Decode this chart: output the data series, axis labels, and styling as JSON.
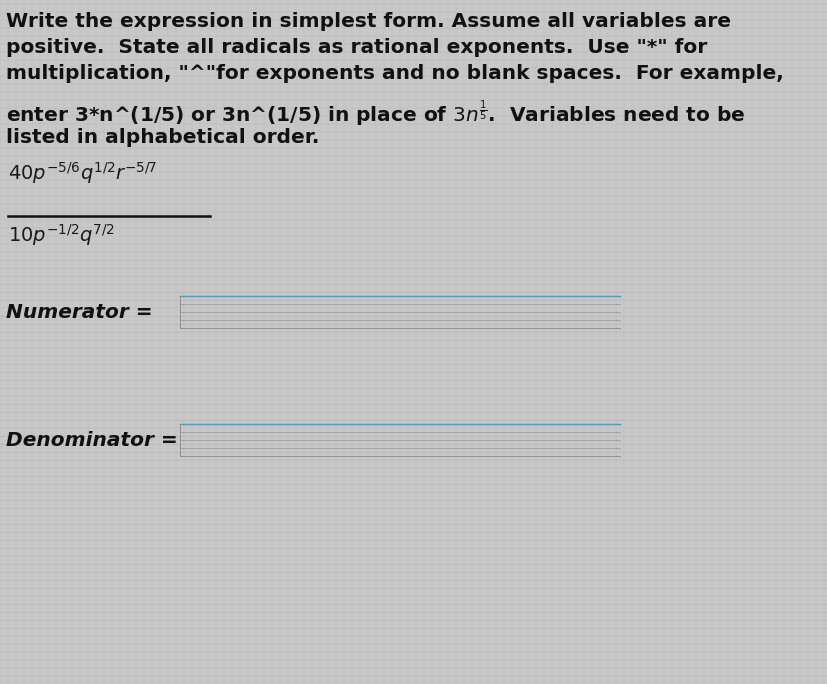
{
  "bg_color": "#c8c8c8",
  "grid_color": "#b0b0b0",
  "text_color": "#111111",
  "fraction_color": "#1a1a1a",
  "label_color": "#111111",
  "line_color": "#666666",
  "box_line_color": "#4488aa",
  "instructions_line1": "Write the expression in simplest form. Assume all variables are",
  "instructions_line2": "positive.  State all radicals as rational exponents.  Use \"*\" for",
  "instructions_line3": "multiplication, \"^\"for exponents and no blank spaces.  For example,",
  "instructions_line4_a": "enter 3*n^(1/5) or 3n^(1/5) in place of ",
  "instructions_line4_b": "$3n^{\\frac{1}{5}}$",
  "instructions_line4_c": ".  Variables need to be",
  "instructions_line5": "listed in alphabetical order.",
  "num_expr": "$40p^{-5/6}q^{1/2}r^{-5/7}$",
  "den_expr": "$10p^{-1/2}q^{7/2}$",
  "numerator_label": "Numerator =",
  "denominator_label": "Denominator ="
}
